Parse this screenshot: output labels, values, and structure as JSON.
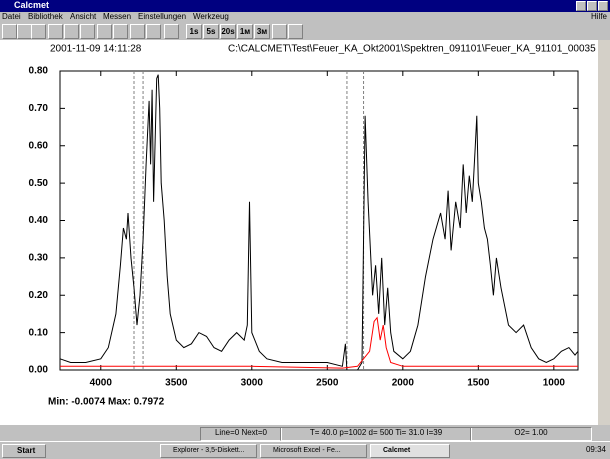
{
  "window": {
    "title": "Calcmet"
  },
  "menu": [
    "Datei",
    "Bibliothek",
    "Ansicht",
    "Messen",
    "Einstellungen",
    "Werkzeug"
  ],
  "help": "Hilfe",
  "toolbar": [
    "1s",
    "5s",
    "20s",
    "1м",
    "3м"
  ],
  "chart_data": {
    "type": "line",
    "timestamp": "2001-11-09 14:11:28",
    "file": "C:\\CALCMET\\Test\\Feuer_KA_Okt2001\\Spektren_091101\\Feuer_KA_91101_00035",
    "xlim": [
      4270,
      840
    ],
    "ylim": [
      0,
      0.8
    ],
    "xticks": [
      4000,
      3500,
      3000,
      2500,
      2000,
      1500,
      1000
    ],
    "yticks": [
      {
        "value": 0,
        "label": "0.00"
      },
      {
        "value": 0.1,
        "label": "0.10"
      },
      {
        "value": 0.2,
        "label": "0.20"
      },
      {
        "value": 0.3,
        "label": "0.30"
      },
      {
        "value": 0.4,
        "label": "0.40"
      },
      {
        "value": 0.5,
        "label": "0.50"
      },
      {
        "value": 0.6,
        "label": "0.60"
      },
      {
        "value": 0.7,
        "label": "0.70"
      },
      {
        "value": 0.8,
        "label": "0.80"
      }
    ],
    "markers": [
      3780,
      3720,
      2370,
      2260
    ],
    "series": [
      {
        "color": "#000000",
        "x": [
          4270,
          4200,
          4100,
          4000,
          3950,
          3900,
          3870,
          3850,
          3830,
          3820,
          3800,
          3780,
          3760,
          3740,
          3720,
          3700,
          3680,
          3670,
          3660,
          3650,
          3630,
          3620,
          3610,
          3600,
          3580,
          3560,
          3540,
          3500,
          3450,
          3400,
          3350,
          3300,
          3250,
          3200,
          3150,
          3100,
          3050,
          3030,
          3015,
          3000,
          2950,
          2900,
          2800,
          2700,
          2600,
          2500,
          2400,
          2380,
          2370,
          2300,
          2270,
          2250,
          2230,
          2200,
          2180,
          2160,
          2140,
          2120,
          2100,
          2080,
          2060,
          2000,
          1950,
          1900,
          1850,
          1800,
          1750,
          1720,
          1700,
          1680,
          1650,
          1620,
          1600,
          1580,
          1560,
          1540,
          1520,
          1510,
          1500,
          1480,
          1460,
          1440,
          1420,
          1400,
          1380,
          1350,
          1300,
          1250,
          1200,
          1150,
          1100,
          1050,
          1000,
          950,
          900,
          860,
          840
        ],
        "values": [
          0.03,
          0.02,
          0.02,
          0.03,
          0.06,
          0.15,
          0.28,
          0.38,
          0.35,
          0.42,
          0.3,
          0.22,
          0.12,
          0.2,
          0.35,
          0.55,
          0.72,
          0.55,
          0.75,
          0.45,
          0.78,
          0.79,
          0.7,
          0.5,
          0.4,
          0.25,
          0.15,
          0.08,
          0.06,
          0.07,
          0.1,
          0.09,
          0.06,
          0.05,
          0.08,
          0.1,
          0.08,
          0.12,
          0.45,
          0.1,
          0.05,
          0.03,
          0.02,
          0.02,
          0.02,
          0.02,
          0.01,
          0.07,
          0,
          0,
          0.02,
          0.68,
          0.45,
          0.2,
          0.28,
          0.15,
          0.3,
          0.12,
          0.22,
          0.1,
          0.05,
          0.03,
          0.05,
          0.12,
          0.25,
          0.35,
          0.42,
          0.35,
          0.48,
          0.32,
          0.45,
          0.38,
          0.55,
          0.42,
          0.52,
          0.45,
          0.6,
          0.68,
          0.5,
          0.45,
          0.38,
          0.35,
          0.28,
          0.2,
          0.3,
          0.22,
          0.12,
          0.1,
          0.12,
          0.06,
          0.03,
          0.02,
          0.03,
          0.05,
          0.06,
          0.04,
          0.05
        ]
      },
      {
        "color": "#ff0000",
        "x": [
          4270,
          3700,
          3000,
          2400,
          2300,
          2220,
          2190,
          2170,
          2150,
          2130,
          2110,
          2080,
          2000,
          1500,
          840
        ],
        "values": [
          0.01,
          0.01,
          0.01,
          0.005,
          0.01,
          0.05,
          0.13,
          0.14,
          0.08,
          0.12,
          0.06,
          0.02,
          0.01,
          0.01,
          0.01
        ]
      }
    ],
    "min_max": "Min: -0.0074  Max: 0.7972"
  },
  "status": [
    "Line=0  Next=0",
    "T= 40.0  p=1002  d= 500  Ti= 31.0  I=39",
    "O2= 1.00"
  ],
  "taskbar": {
    "start": "Start",
    "tasks": [
      "Explorer - 3,5-Diskett...",
      "Microsoft Excel - Fe...",
      "Calcmet"
    ],
    "clock": "09:34"
  }
}
